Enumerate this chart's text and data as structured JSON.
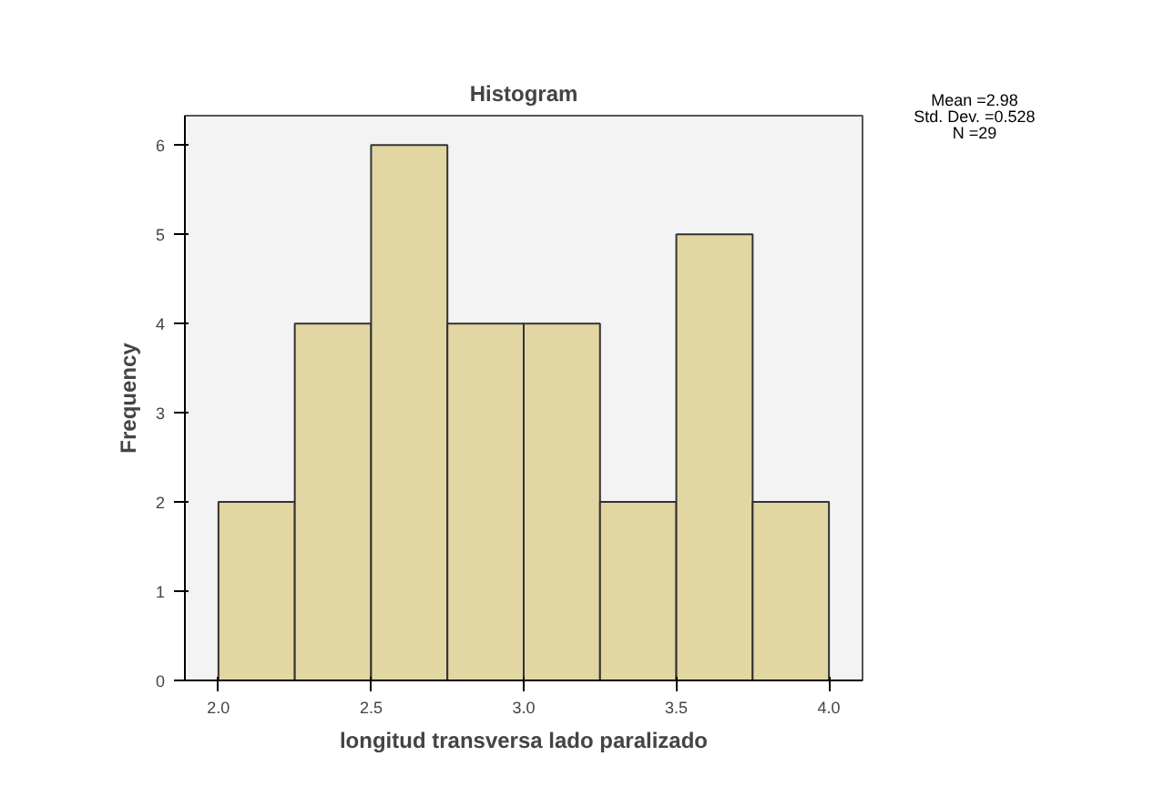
{
  "chart_data": {
    "type": "histogram",
    "title": "Histogram",
    "xlabel": "longitud transversa lado paralizado",
    "ylabel": "Frequency",
    "bins": [
      2.0,
      2.25,
      2.5,
      2.75,
      3.0,
      3.25,
      3.5,
      3.75,
      4.0
    ],
    "values": [
      2,
      4,
      6,
      4,
      4,
      2,
      5,
      2
    ],
    "color": "#e2d7a3",
    "xlim": [
      1.89,
      4.11
    ],
    "ylim": [
      0,
      6.33
    ],
    "xticks": [
      {
        "value": 2.0,
        "label": "2.0"
      },
      {
        "value": 2.5,
        "label": "2.5"
      },
      {
        "value": 3.0,
        "label": "3.0"
      },
      {
        "value": 3.5,
        "label": "3.5"
      },
      {
        "value": 4.0,
        "label": "4.0"
      }
    ],
    "yticks": [
      0,
      1,
      2,
      3,
      4,
      5,
      6
    ],
    "grid": false,
    "annotations": [
      "Mean =2.98",
      "Std. Dev. =0.528",
      "N =29"
    ]
  }
}
